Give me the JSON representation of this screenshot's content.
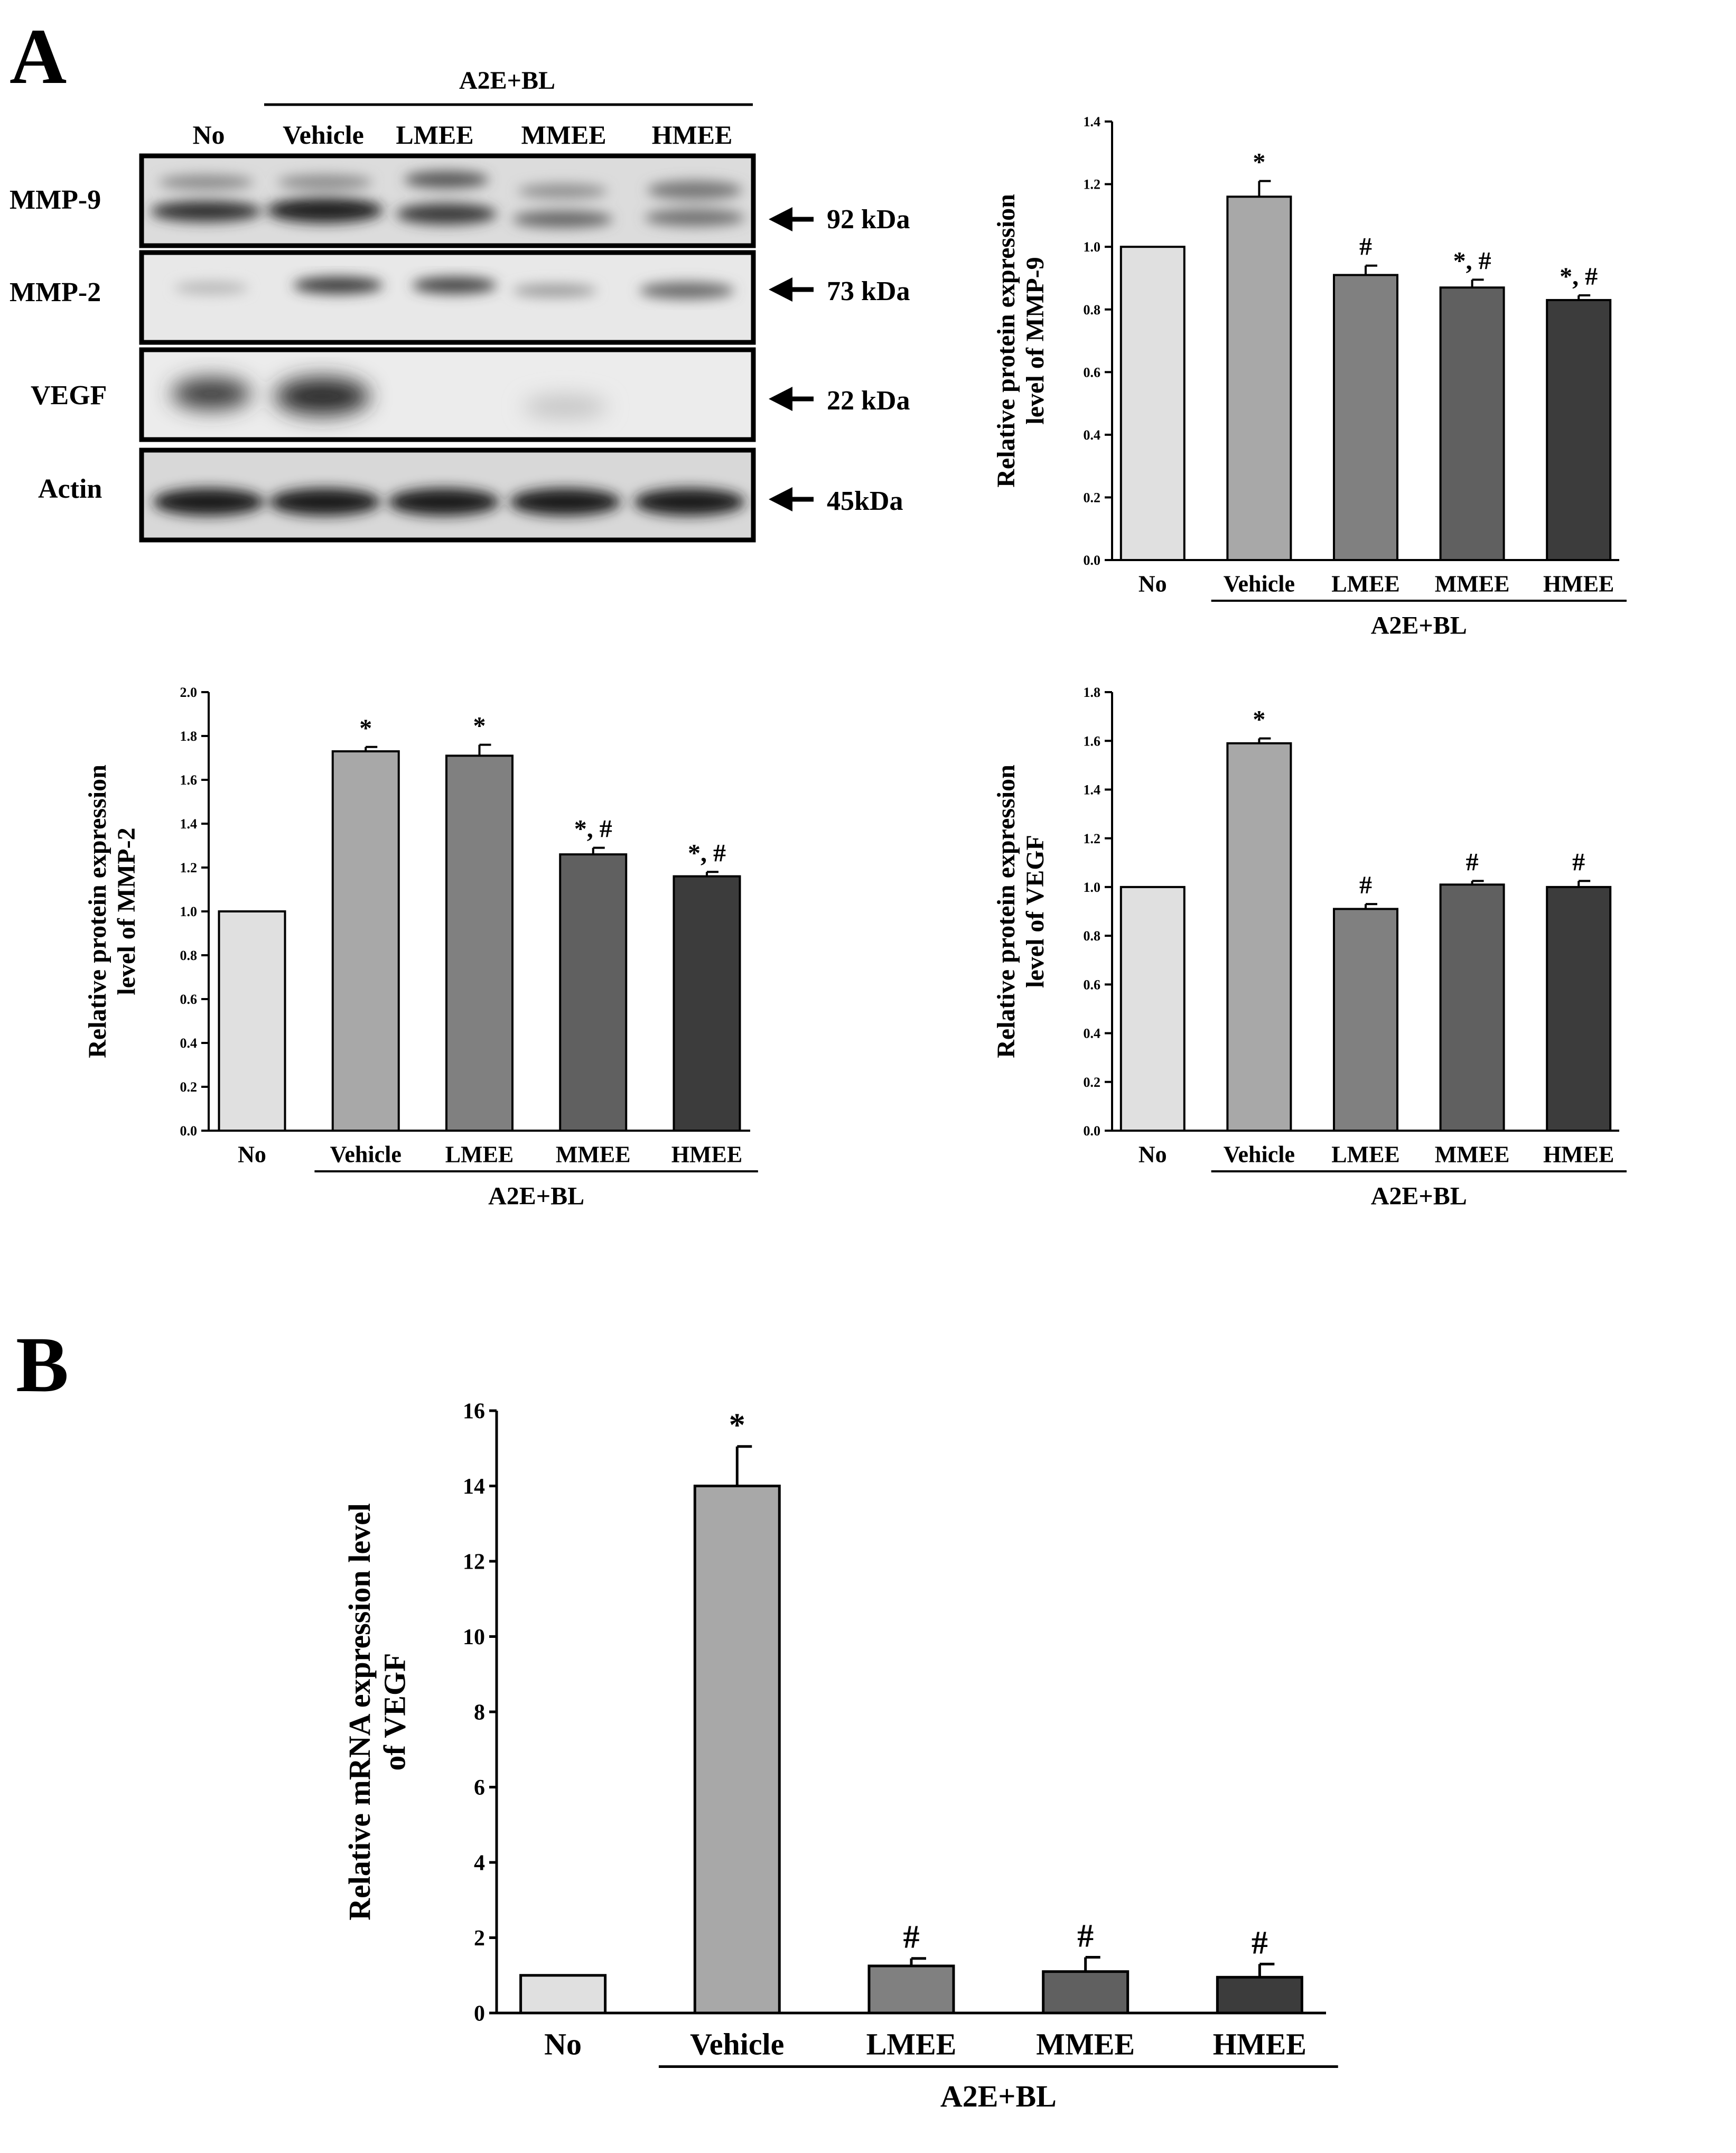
{
  "panel_labels": [
    "A",
    "B"
  ],
  "blot": {
    "treatment_label": "A2E+BL",
    "lanes": [
      "No",
      "Vehicle",
      "LMEE",
      "MMEE",
      "HMEE"
    ],
    "rows": [
      {
        "name": "MMP-9",
        "size": "92 kDa"
      },
      {
        "name": "MMP-2",
        "size": "73 kDa"
      },
      {
        "name": "VEGF",
        "size": "22 kDa"
      },
      {
        "name": "Actin",
        "size": "45kDa"
      }
    ]
  },
  "chart_data": [
    {
      "type": "bar",
      "categories": [
        "No",
        "Vehicle",
        "LMEE",
        "MMEE",
        "HMEE"
      ],
      "values": [
        1.0,
        1.16,
        0.91,
        0.87,
        0.83
      ],
      "errors": [
        0,
        0.05,
        0.03,
        0.025,
        0.015
      ],
      "annotations": [
        "",
        "*",
        "#",
        "*, #",
        "*, #"
      ],
      "colors": [
        "#e0e0e0",
        "#a8a8a8",
        "#808080",
        "#606060",
        "#3c3c3c"
      ],
      "ylabel_line1": "Relative protein expression",
      "ylabel_line2": "level of MMP-9",
      "group_label": "A2E+BL",
      "ylim": [
        0,
        1.4
      ],
      "yticks": [
        "0.0",
        "0.2",
        "0.4",
        "0.6",
        "0.8",
        "1.0",
        "1.2",
        "1.4"
      ]
    },
    {
      "type": "bar",
      "categories": [
        "No",
        "Vehicle",
        "LMEE",
        "MMEE",
        "HMEE"
      ],
      "values": [
        1.0,
        1.73,
        1.71,
        1.26,
        1.16
      ],
      "errors": [
        0,
        0.02,
        0.05,
        0.03,
        0.02
      ],
      "annotations": [
        "",
        "*",
        "*",
        "*, #",
        "*, #"
      ],
      "colors": [
        "#e0e0e0",
        "#a8a8a8",
        "#808080",
        "#606060",
        "#3c3c3c"
      ],
      "ylabel_line1": "Relative protein expression",
      "ylabel_line2": "level of MMP-2",
      "group_label": "A2E+BL",
      "ylim": [
        0,
        2.0
      ],
      "yticks": [
        "0.0",
        "0.2",
        "0.4",
        "0.6",
        "0.8",
        "1.0",
        "1.2",
        "1.4",
        "1.6",
        "1.8",
        "2.0"
      ]
    },
    {
      "type": "bar",
      "categories": [
        "No",
        "Vehicle",
        "LMEE",
        "MMEE",
        "HMEE"
      ],
      "values": [
        1.0,
        1.59,
        0.91,
        1.01,
        1.0
      ],
      "errors": [
        0,
        0.02,
        0.02,
        0.015,
        0.025
      ],
      "annotations": [
        "",
        "*",
        "#",
        "#",
        "#"
      ],
      "colors": [
        "#e0e0e0",
        "#a8a8a8",
        "#808080",
        "#606060",
        "#3c3c3c"
      ],
      "ylabel_line1": "Relative protein expression",
      "ylabel_line2": "level of VEGF",
      "group_label": "A2E+BL",
      "ylim": [
        0,
        1.8
      ],
      "yticks": [
        "0.0",
        "0.2",
        "0.4",
        "0.6",
        "0.8",
        "1.0",
        "1.2",
        "1.4",
        "1.6",
        "1.8"
      ]
    },
    {
      "type": "bar",
      "categories": [
        "No",
        "Vehicle",
        "LMEE",
        "MMEE",
        "HMEE"
      ],
      "values": [
        1.0,
        14.0,
        1.25,
        1.1,
        0.95
      ],
      "errors": [
        0,
        1.05,
        0.2,
        0.38,
        0.35
      ],
      "annotations": [
        "",
        "*",
        "#",
        "#",
        "#"
      ],
      "colors": [
        "#e0e0e0",
        "#a8a8a8",
        "#808080",
        "#606060",
        "#3c3c3c"
      ],
      "ylabel_line1": "Relative mRNA expression level",
      "ylabel_line2": "of VEGF",
      "group_label": "A2E+BL",
      "ylim": [
        0,
        16
      ],
      "yticks": [
        "0",
        "2",
        "4",
        "6",
        "8",
        "10",
        "12",
        "14",
        "16"
      ]
    }
  ]
}
